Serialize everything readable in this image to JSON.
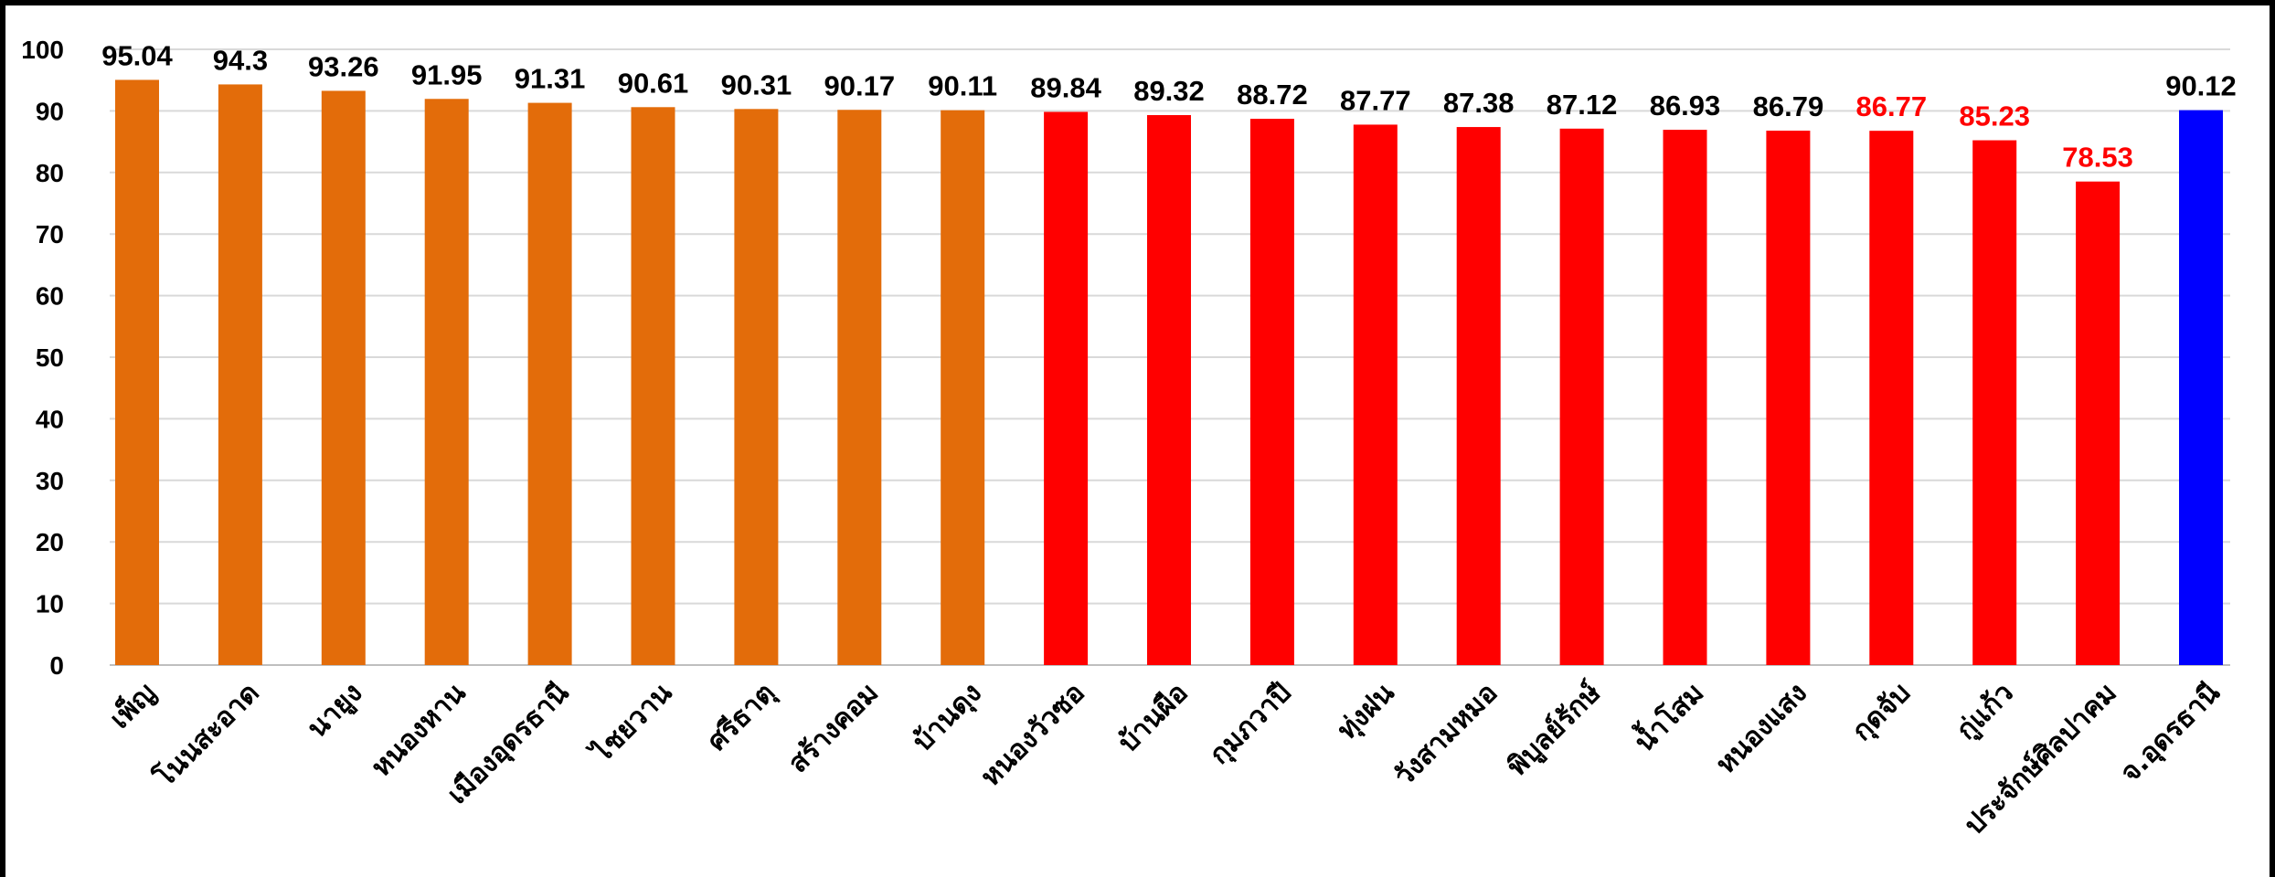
{
  "chart_data": {
    "type": "bar",
    "title": "",
    "xlabel": "",
    "ylabel": "",
    "ylim": [
      0,
      100
    ],
    "yticks": [
      0,
      10,
      20,
      30,
      40,
      50,
      60,
      70,
      80,
      90,
      100
    ],
    "grid": true,
    "categories": [
      "เพ็ญ",
      "โนนสะอาด",
      "นายูง",
      "หนองหาน",
      "เมืองอุดรธานี",
      "ไชยวาน",
      "ศรีธาตุ",
      "สร้างคอม",
      "บ้านดุง",
      "หนองวัวซอ",
      "บ้านผือ",
      "กุมภวาปี",
      "ทุ่งฝน",
      "วังสามหมอ",
      "พิบูลย์รักษ์",
      "น้ำโสม",
      "หนองแสง",
      "กุดจับ",
      "กู่แก้ว",
      "ประจักษ์ศิลปาคม",
      "จ.อุดรธานี"
    ],
    "values": [
      95.04,
      94.3,
      93.26,
      91.95,
      91.31,
      90.61,
      90.31,
      90.17,
      90.11,
      89.84,
      89.32,
      88.72,
      87.77,
      87.38,
      87.12,
      86.93,
      86.79,
      86.77,
      85.23,
      78.53,
      90.12
    ],
    "value_labels": [
      "95.04",
      "94.3",
      "93.26",
      "91.95",
      "91.31",
      "90.61",
      "90.31",
      "90.17",
      "90.11",
      "89.84",
      "89.32",
      "88.72",
      "87.77",
      "87.38",
      "87.12",
      "86.93",
      "86.79",
      "86.77",
      "85.23",
      "78.53",
      "90.12"
    ],
    "bar_colors": [
      "#e36c0a",
      "#e36c0a",
      "#e36c0a",
      "#e36c0a",
      "#e36c0a",
      "#e36c0a",
      "#e36c0a",
      "#e36c0a",
      "#e36c0a",
      "#ff0000",
      "#ff0000",
      "#ff0000",
      "#ff0000",
      "#ff0000",
      "#ff0000",
      "#ff0000",
      "#ff0000",
      "#ff0000",
      "#ff0000",
      "#ff0000",
      "#0000ff"
    ],
    "label_colors": [
      "#000000",
      "#000000",
      "#000000",
      "#000000",
      "#000000",
      "#000000",
      "#000000",
      "#000000",
      "#000000",
      "#000000",
      "#000000",
      "#000000",
      "#000000",
      "#000000",
      "#000000",
      "#000000",
      "#000000",
      "#ff0000",
      "#ff0000",
      "#ff0000",
      "#000000"
    ]
  }
}
